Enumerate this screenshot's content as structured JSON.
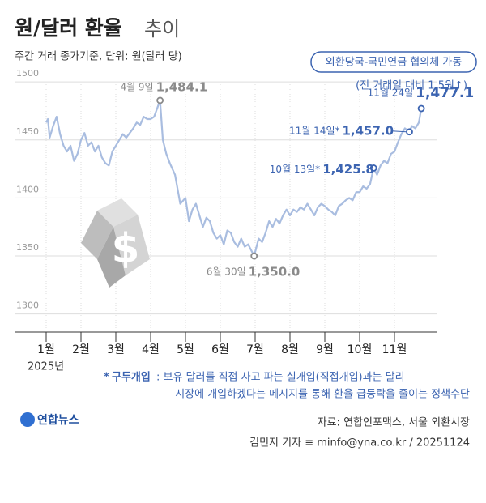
{
  "chart_data": {
    "type": "line",
    "title": "원/달러 환율",
    "title_suffix": "추이",
    "subtitle": "주간 거래 종가기준, 단위: 원(달러 당)",
    "year_label": "2025년",
    "ylim": [
      1290,
      1505
    ],
    "yticks": [
      1300,
      1350,
      1400,
      1450,
      1500
    ],
    "xlim": [
      1,
      11.8
    ],
    "xticks": [
      {
        "value": 1,
        "label": "1월"
      },
      {
        "value": 2,
        "label": "2월"
      },
      {
        "value": 3,
        "label": "3월"
      },
      {
        "value": 4,
        "label": "4월"
      },
      {
        "value": 5,
        "label": "5월"
      },
      {
        "value": 6,
        "label": "6월"
      },
      {
        "value": 7,
        "label": "7월"
      },
      {
        "value": 8,
        "label": "8월"
      },
      {
        "value": 9,
        "label": "9월"
      },
      {
        "value": 10,
        "label": "10월"
      },
      {
        "value": 11,
        "label": "11월"
      }
    ],
    "grid": true,
    "series": [
      {
        "color": "#a9bde0",
        "x": [
          1.0,
          1.05,
          1.1,
          1.2,
          1.3,
          1.4,
          1.5,
          1.6,
          1.7,
          1.8,
          1.9,
          2.0,
          2.1,
          2.2,
          2.3,
          2.4,
          2.5,
          2.6,
          2.7,
          2.8,
          2.9,
          3.0,
          3.1,
          3.2,
          3.3,
          3.5,
          3.6,
          3.7,
          3.8,
          3.9,
          4.0,
          4.1,
          4.27,
          4.35,
          4.45,
          4.55,
          4.7,
          4.85,
          5.0,
          5.1,
          5.2,
          5.3,
          5.4,
          5.5,
          5.6,
          5.7,
          5.8,
          5.9,
          6.0,
          6.1,
          6.2,
          6.3,
          6.4,
          6.5,
          6.6,
          6.7,
          6.8,
          6.97,
          7.1,
          7.2,
          7.3,
          7.4,
          7.5,
          7.6,
          7.7,
          7.8,
          7.9,
          8.0,
          8.1,
          8.2,
          8.3,
          8.4,
          8.5,
          8.6,
          8.7,
          8.8,
          8.9,
          9.0,
          9.1,
          9.2,
          9.3,
          9.4,
          9.5,
          9.6,
          9.7,
          9.8,
          9.9,
          10.0,
          10.1,
          10.2,
          10.3,
          10.4,
          10.5,
          10.6,
          10.7,
          10.8,
          10.9,
          11.0,
          11.1,
          11.2,
          11.3,
          11.43,
          11.5,
          11.6,
          11.7,
          11.77
        ],
        "values": [
          1465,
          1468,
          1452,
          1462,
          1470,
          1455,
          1445,
          1440,
          1445,
          1432,
          1438,
          1450,
          1456,
          1445,
          1448,
          1440,
          1445,
          1435,
          1430,
          1428,
          1440,
          1445,
          1450,
          1455,
          1452,
          1460,
          1465,
          1463,
          1470,
          1468,
          1468,
          1470,
          1484.1,
          1450,
          1438,
          1430,
          1420,
          1395,
          1400,
          1380,
          1390,
          1395,
          1385,
          1375,
          1383,
          1380,
          1370,
          1365,
          1368,
          1360,
          1372,
          1370,
          1362,
          1358,
          1365,
          1358,
          1360,
          1350.0,
          1365,
          1362,
          1370,
          1380,
          1375,
          1382,
          1378,
          1385,
          1390,
          1385,
          1390,
          1388,
          1392,
          1390,
          1395,
          1390,
          1385,
          1392,
          1395,
          1393,
          1390,
          1388,
          1385,
          1393,
          1395,
          1398,
          1400,
          1398,
          1405,
          1405,
          1410,
          1408,
          1412,
          1425.8,
          1420,
          1428,
          1432,
          1430,
          1438,
          1440,
          1448,
          1455,
          1460,
          1457.0,
          1462,
          1460,
          1465,
          1477.1
        ]
      }
    ],
    "annotations": [
      {
        "x": 4.27,
        "y": 1484.1,
        "date": "4월 9일",
        "label": "1,484.1",
        "color": "#8a8a8a"
      },
      {
        "x": 6.97,
        "y": 1350.0,
        "date": "6월 30일",
        "label": "1,350.0",
        "color": "#8a8a8a"
      },
      {
        "x": 10.4,
        "y": 1425.8,
        "date": "10월 13일*",
        "label": "1,425.8",
        "color": "#3c64b1"
      },
      {
        "x": 11.43,
        "y": 1457.0,
        "date": "11월 14일*",
        "label": "1,457.0",
        "color": "#3c64b1"
      },
      {
        "x": 11.77,
        "y": 1477.1,
        "date": "11월 24일",
        "label": "1,477.1",
        "color": "#3c64b1"
      }
    ],
    "event_box": "외환당국-국민연금 협의체 가동",
    "event_note": "(전 거래일 대비 1.5원↑)",
    "footnote_mark": "*",
    "footnote_term": "구두개입",
    "footnote_lines": [
      ": 보유 달러를 직접 사고 파는 실개입(직접개입)과는 달리",
      "시장에 개입하겠다는 메시지를 통해 환율 급등락을 줄이는 정책수단"
    ],
    "logo": "연합뉴스",
    "source": "자료: 연합인포맥스, 서울 외환시장",
    "credit": "김민지 기자 ≡ minfo@yna.co.kr / 20251124"
  }
}
